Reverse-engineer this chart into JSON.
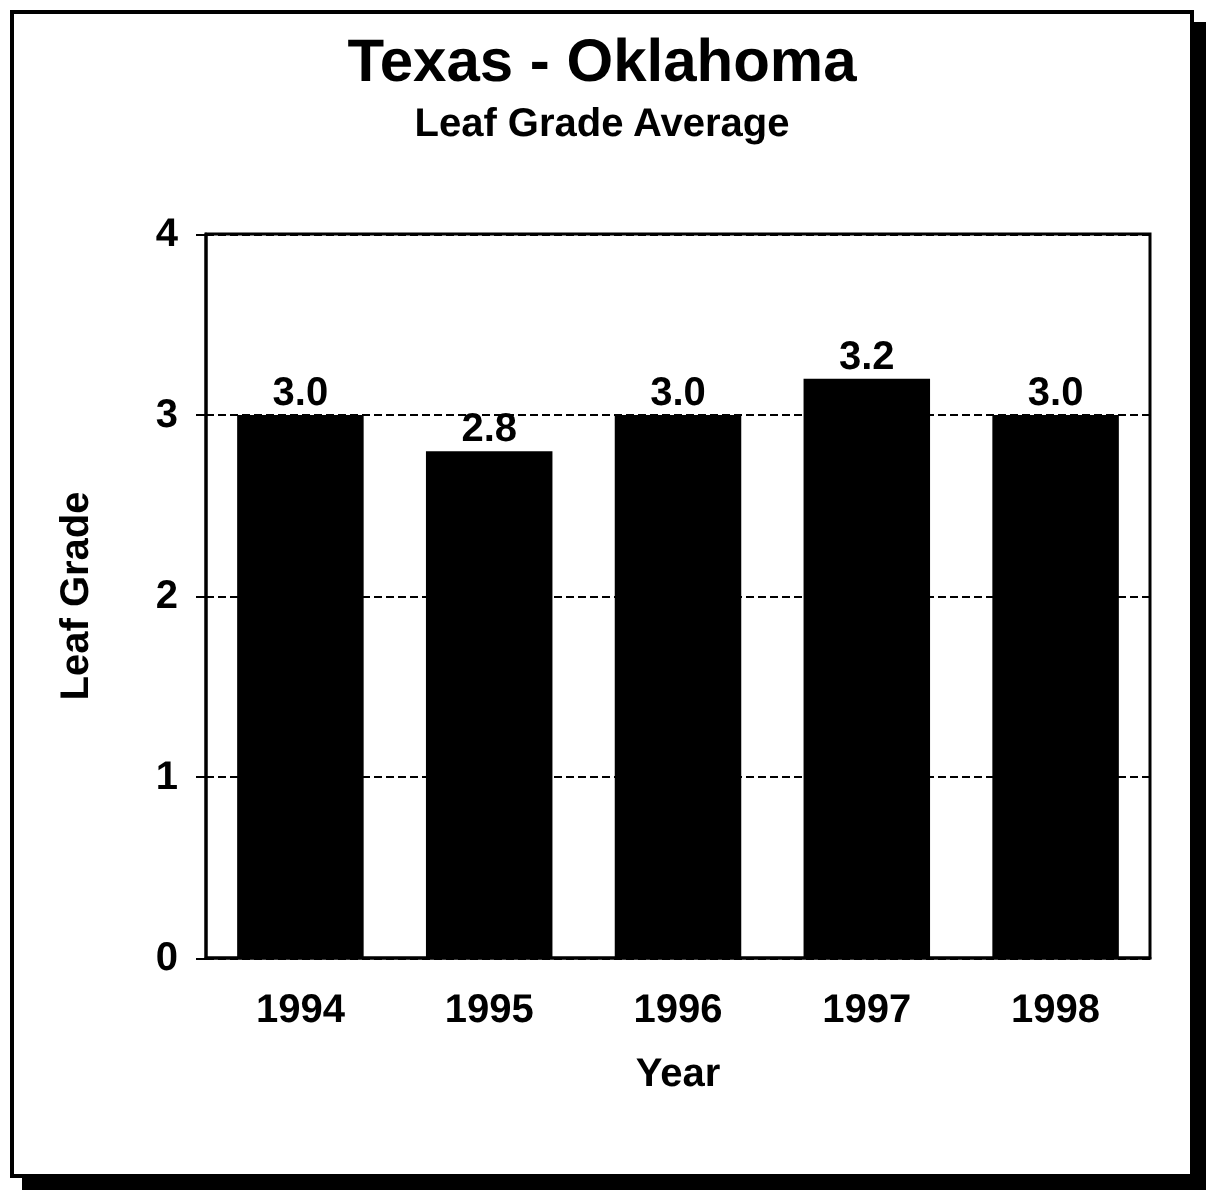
{
  "chart_data": {
    "type": "bar",
    "title": "Texas - Oklahoma",
    "subtitle": "Leaf Grade Average",
    "xlabel": "Year",
    "ylabel": "Leaf Grade",
    "categories": [
      "1994",
      "1995",
      "1996",
      "1997",
      "1998"
    ],
    "values": [
      3.0,
      2.8,
      3.0,
      3.2,
      3.0
    ],
    "value_labels": [
      "3.0",
      "2.8",
      "3.0",
      "3.2",
      "3.0"
    ],
    "color": "#000000",
    "ylim": [
      0,
      4
    ],
    "yticks": [
      0,
      1,
      2,
      3,
      4
    ],
    "grid": "y"
  }
}
